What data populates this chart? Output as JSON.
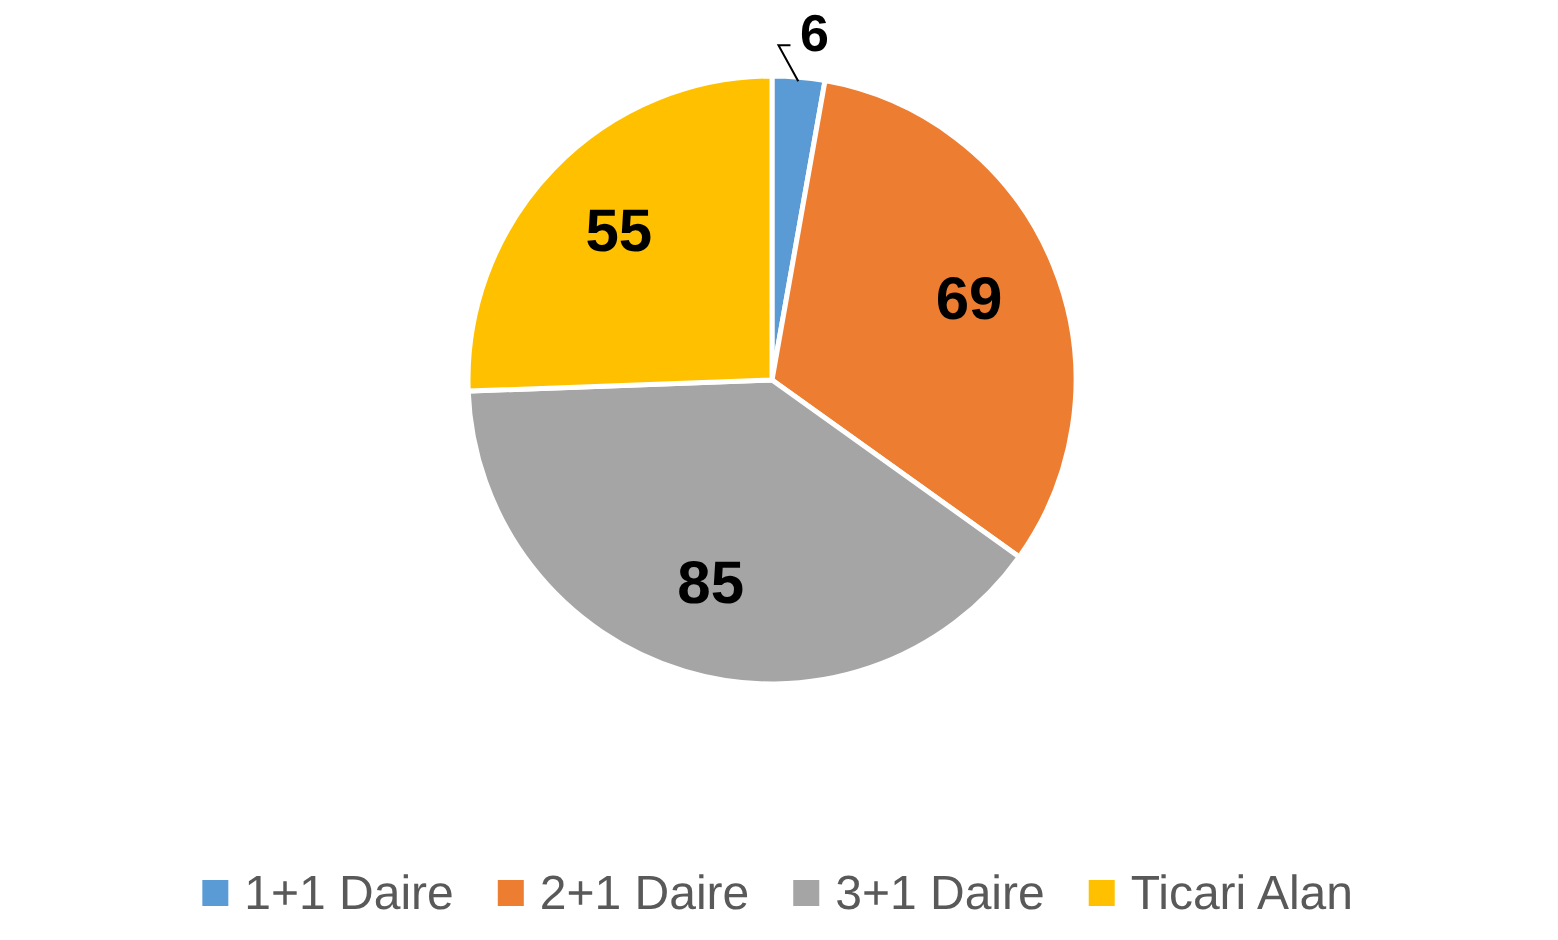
{
  "chart_data": {
    "type": "pie",
    "categories": [
      "1+1 Daire",
      "2+1 Daire",
      "3+1 Daire",
      "Ticari Alan"
    ],
    "values": [
      6,
      69,
      85,
      55
    ],
    "colors": [
      "#5b9bd5",
      "#ed7d31",
      "#a5a5a5",
      "#ffc000"
    ],
    "data_labels": true,
    "legend": "bottom"
  }
}
